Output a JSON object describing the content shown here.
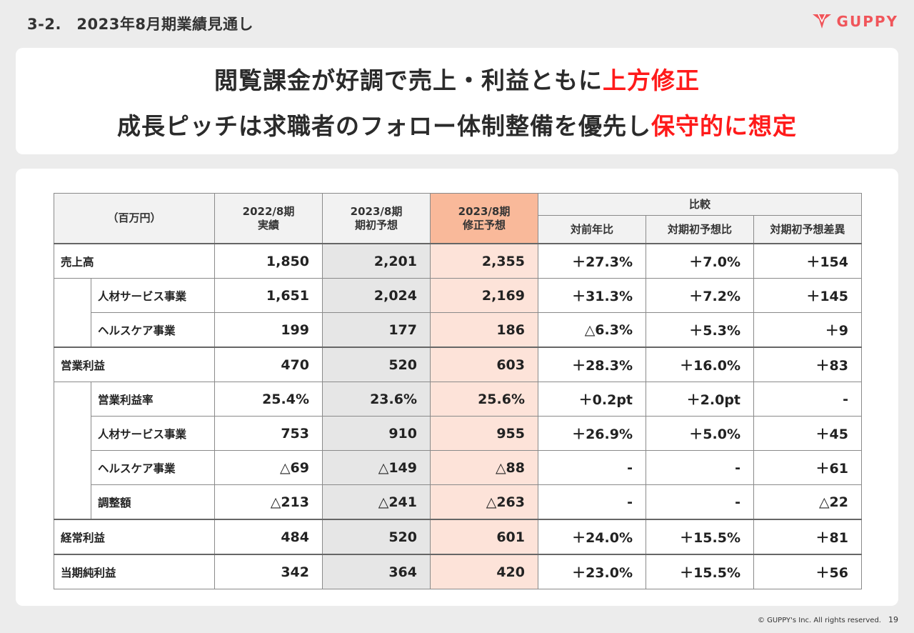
{
  "header": {
    "slide_title": "3-2.　2023年8月期業績見通し",
    "logo_text": "GUPPY",
    "logo_color": "#f0555a"
  },
  "headline": {
    "line1_text": "閲覧課金が好調で売上・利益ともに",
    "line1_red": "上方修正",
    "line2_text": "成長ピッチは求職者のフォロー体制整備を優先し",
    "line2_red": "保守的に想定",
    "red_color": "#ff1a1a"
  },
  "table": {
    "unit_label": "（百万円）",
    "columns": [
      {
        "line1": "2022/8期",
        "line2": "実績"
      },
      {
        "line1": "2023/8期",
        "line2": "期初予想"
      },
      {
        "line1": "2023/8期",
        "line2": "修正予想"
      }
    ],
    "compare_header": "比較",
    "compare_columns": [
      "対前年比",
      "対期初予想比",
      "対期初予想差異"
    ],
    "highlight_color": "#f9b99a",
    "rows": [
      {
        "label": "売上高",
        "values": [
          "1,850",
          "2,201",
          "2,355",
          "＋27.3%",
          "＋7.0%",
          "＋154"
        ]
      },
      {
        "label": "人材サービス事業",
        "values": [
          "1,651",
          "2,024",
          "2,169",
          "＋31.3%",
          "＋7.2%",
          "＋145"
        ]
      },
      {
        "label": "ヘルスケア事業",
        "values": [
          "199",
          "177",
          "186",
          "△6.3%",
          "＋5.3%",
          "＋9"
        ]
      },
      {
        "label": "営業利益",
        "values": [
          "470",
          "520",
          "603",
          "＋28.3%",
          "＋16.0%",
          "＋83"
        ]
      },
      {
        "label": "営業利益率",
        "values": [
          "25.4%",
          "23.6%",
          "25.6%",
          "＋0.2pt",
          "＋2.0pt",
          "-"
        ]
      },
      {
        "label": "人材サービス事業",
        "values": [
          "753",
          "910",
          "955",
          "＋26.9%",
          "＋5.0%",
          "＋45"
        ]
      },
      {
        "label": "ヘルスケア事業",
        "values": [
          "△69",
          "△149",
          "△88",
          "-",
          "-",
          "＋61"
        ]
      },
      {
        "label": "調整額",
        "values": [
          "△213",
          "△241",
          "△263",
          "-",
          "-",
          "△22"
        ]
      },
      {
        "label": "経常利益",
        "values": [
          "484",
          "520",
          "601",
          "＋24.0%",
          "＋15.5%",
          "＋81"
        ]
      },
      {
        "label": "当期純利益",
        "values": [
          "342",
          "364",
          "420",
          "＋23.0%",
          "＋15.5%",
          "＋56"
        ]
      }
    ]
  },
  "footer": {
    "copyright": "© GUPPY's Inc. All rights reserved.",
    "page_number": "19"
  }
}
